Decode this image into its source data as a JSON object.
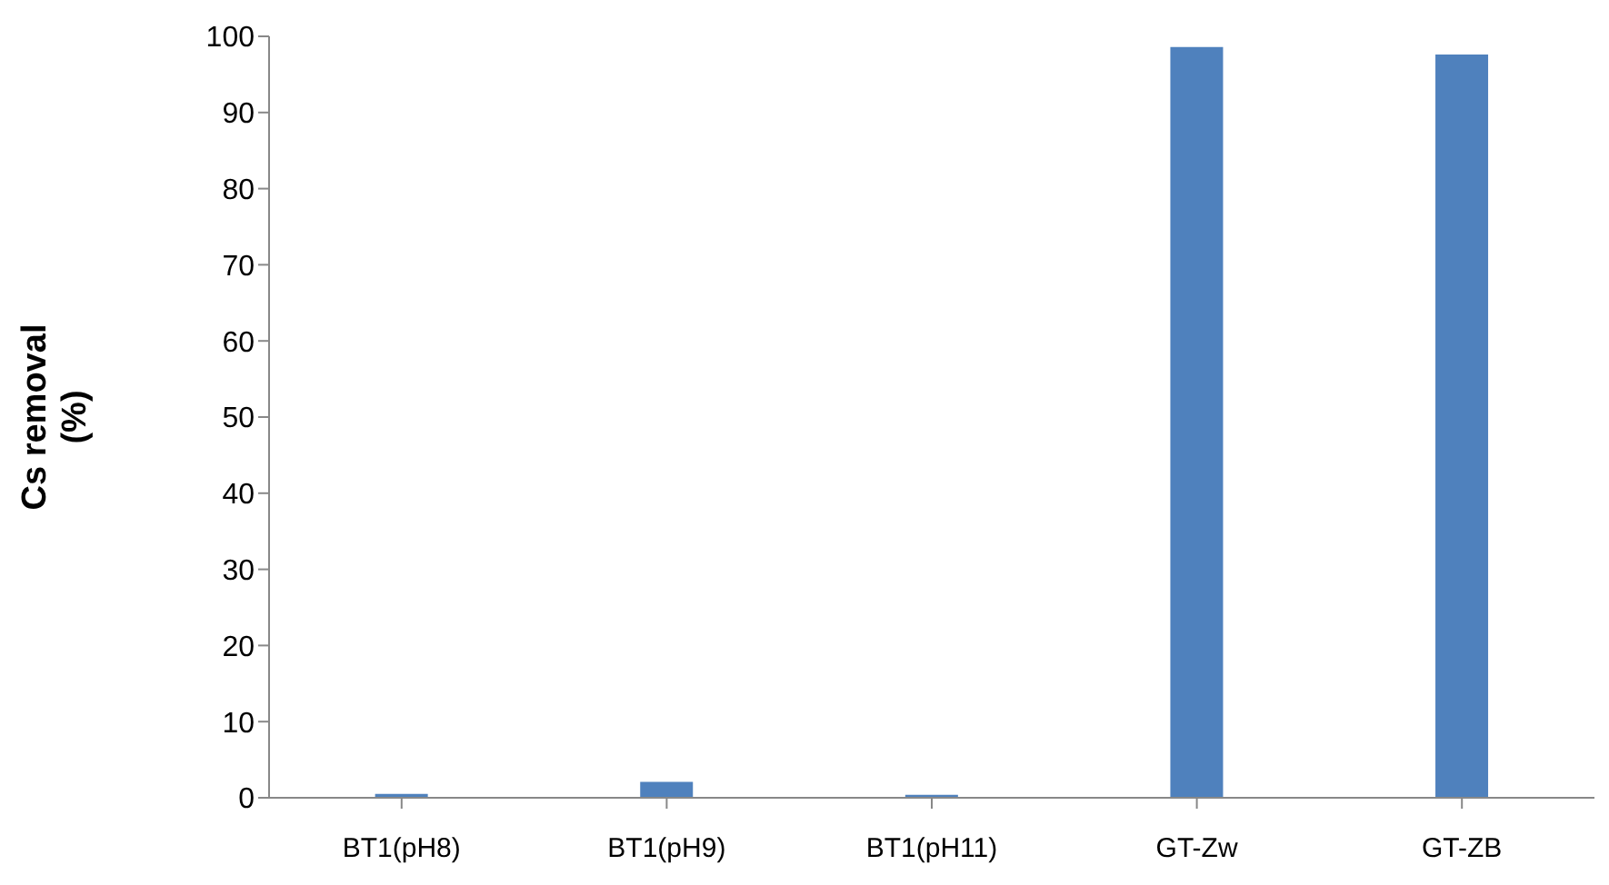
{
  "chart_data": {
    "type": "bar",
    "ylabel": "Cs removal\n(%)",
    "categories": [
      "BT1(pH8)",
      "BT1(pH9)",
      "BT1(pH11)",
      "GT-Zw",
      "GT-ZB"
    ],
    "values": [
      0.5,
      2.1,
      0.4,
      98.6,
      97.6
    ],
    "color": "#4f81bd",
    "ylim": [
      0,
      100
    ],
    "yticks": [
      0,
      10,
      20,
      30,
      40,
      50,
      60,
      70,
      80,
      90,
      100
    ],
    "grid": false
  }
}
